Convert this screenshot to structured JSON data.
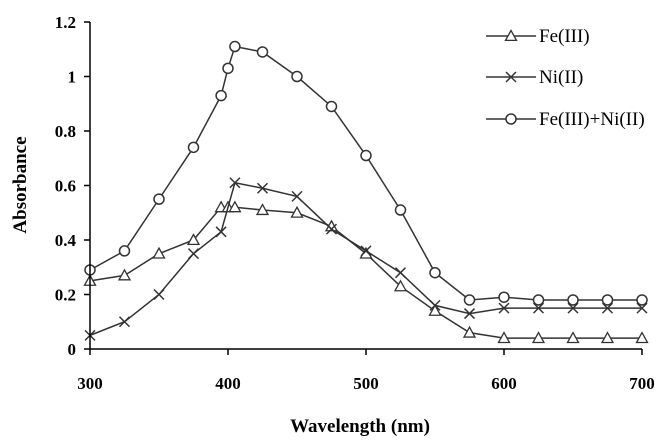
{
  "chart_data": {
    "type": "line",
    "xlabel": "Wavelength (nm)",
    "ylabel": "Absorbance",
    "xlim": [
      300,
      700
    ],
    "ylim": [
      0,
      1.2
    ],
    "xticks": [
      "300",
      "400",
      "500",
      "600",
      "700"
    ],
    "yticks": [
      "0",
      "0.2",
      "0.4",
      "0.6",
      "0.8",
      "1",
      "1.2"
    ],
    "grid": false,
    "legend_position": "top-right",
    "series": [
      {
        "name": "Fe(III)",
        "marker": "triangle",
        "x": [
          300,
          325,
          350,
          375,
          395,
          400,
          405,
          425,
          450,
          475,
          500,
          525,
          550,
          575,
          600,
          625,
          650,
          675,
          700
        ],
        "y": [
          0.25,
          0.27,
          0.35,
          0.4,
          0.52,
          0.52,
          0.52,
          0.51,
          0.5,
          0.45,
          0.35,
          0.23,
          0.14,
          0.06,
          0.04,
          0.04,
          0.04,
          0.04,
          0.04
        ]
      },
      {
        "name": "Ni(II)",
        "marker": "x",
        "x": [
          300,
          325,
          350,
          375,
          395,
          405,
          425,
          450,
          475,
          500,
          525,
          550,
          575,
          600,
          625,
          650,
          675,
          700
        ],
        "y": [
          0.05,
          0.1,
          0.2,
          0.35,
          0.43,
          0.61,
          0.59,
          0.56,
          0.44,
          0.36,
          0.28,
          0.16,
          0.13,
          0.15,
          0.15,
          0.15,
          0.15,
          0.15
        ]
      },
      {
        "name": "Fe(III)+Ni(II)",
        "marker": "circle",
        "x": [
          300,
          325,
          350,
          375,
          395,
          400,
          405,
          425,
          450,
          475,
          500,
          525,
          550,
          575,
          600,
          625,
          650,
          675,
          700
        ],
        "y": [
          0.29,
          0.36,
          0.55,
          0.74,
          0.93,
          1.03,
          1.11,
          1.09,
          1.0,
          0.89,
          0.71,
          0.51,
          0.28,
          0.18,
          0.19,
          0.18,
          0.18,
          0.18,
          0.18
        ]
      }
    ]
  }
}
